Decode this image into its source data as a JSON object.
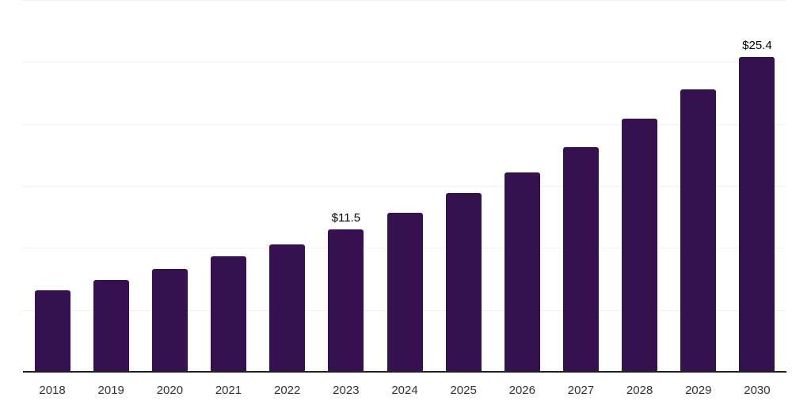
{
  "chart_data": {
    "type": "bar",
    "title": "",
    "xlabel": "",
    "ylabel": "",
    "categories": [
      "2018",
      "2019",
      "2020",
      "2021",
      "2022",
      "2023",
      "2024",
      "2025",
      "2026",
      "2027",
      "2028",
      "2029",
      "2030"
    ],
    "values": [
      6.6,
      7.4,
      8.3,
      9.3,
      10.3,
      11.5,
      12.8,
      14.4,
      16.1,
      18.1,
      20.4,
      22.8,
      25.4
    ],
    "data_labels": [
      "",
      "",
      "",
      "",
      "",
      "$11.5",
      "",
      "",
      "",
      "",
      "",
      "",
      "$25.4"
    ],
    "value_prefix": "$",
    "ylim": [
      0,
      30
    ],
    "grid_step": 5,
    "grid": "horizontal-only",
    "legend": "none",
    "y_axis_tick_labels": "none",
    "bar_color": "#361150"
  },
  "style": {
    "background": "#ffffff",
    "grid_color": "#f1f1f1",
    "axis_color": "#212121",
    "tick_label_color": "#333333",
    "data_label_color": "#000000"
  }
}
